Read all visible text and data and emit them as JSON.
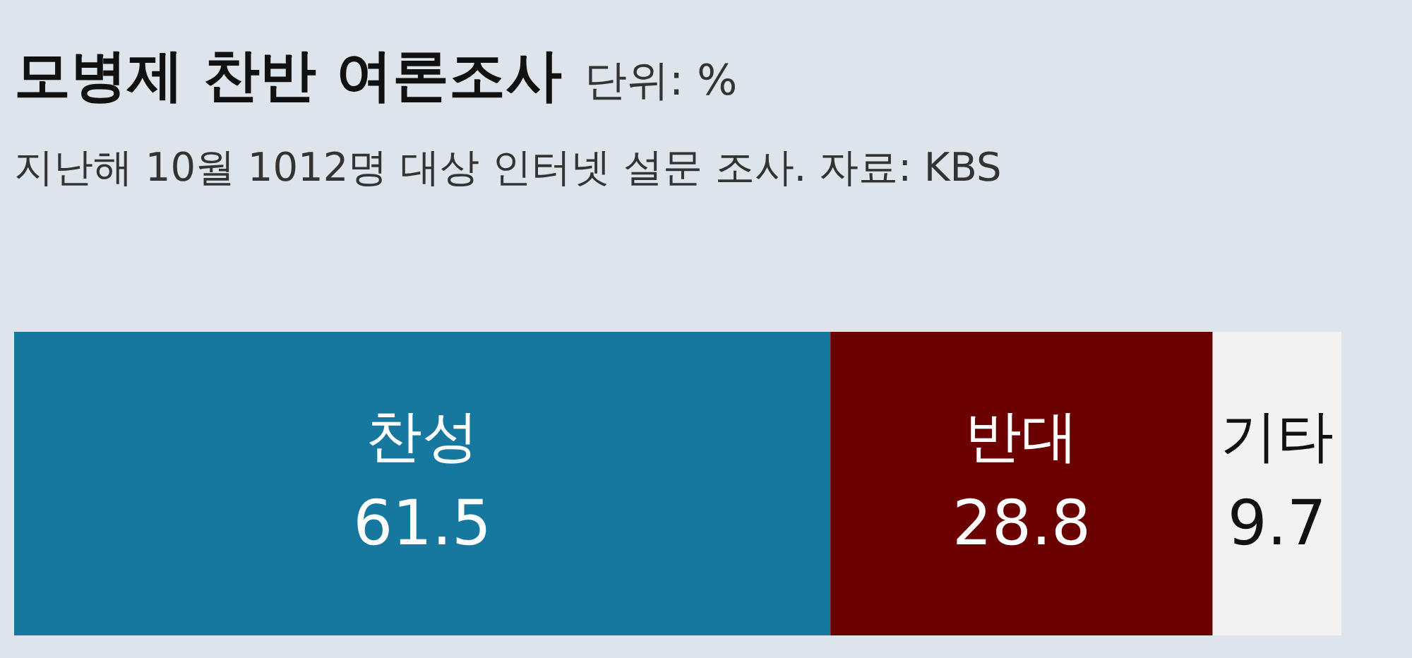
{
  "chart_data": {
    "type": "bar",
    "orientation": "horizontal",
    "stacked": true,
    "title": "모병제 찬반 여론조사",
    "subtitle": "지난해 10월 1012명 대상 인터넷 설문 조사. 자료: KBS",
    "annotations": [
      "단위: %"
    ],
    "categories": [
      null
    ],
    "series": [
      {
        "name": "찬성",
        "color": "#17789f",
        "values": [
          61.5
        ]
      },
      {
        "name": "반대",
        "color": "#6b0000",
        "values": [
          28.8
        ]
      },
      {
        "name": "기타",
        "color": "#f2f2f2",
        "values": [
          9.7
        ]
      }
    ],
    "data_labels": true,
    "legend": false
  }
}
